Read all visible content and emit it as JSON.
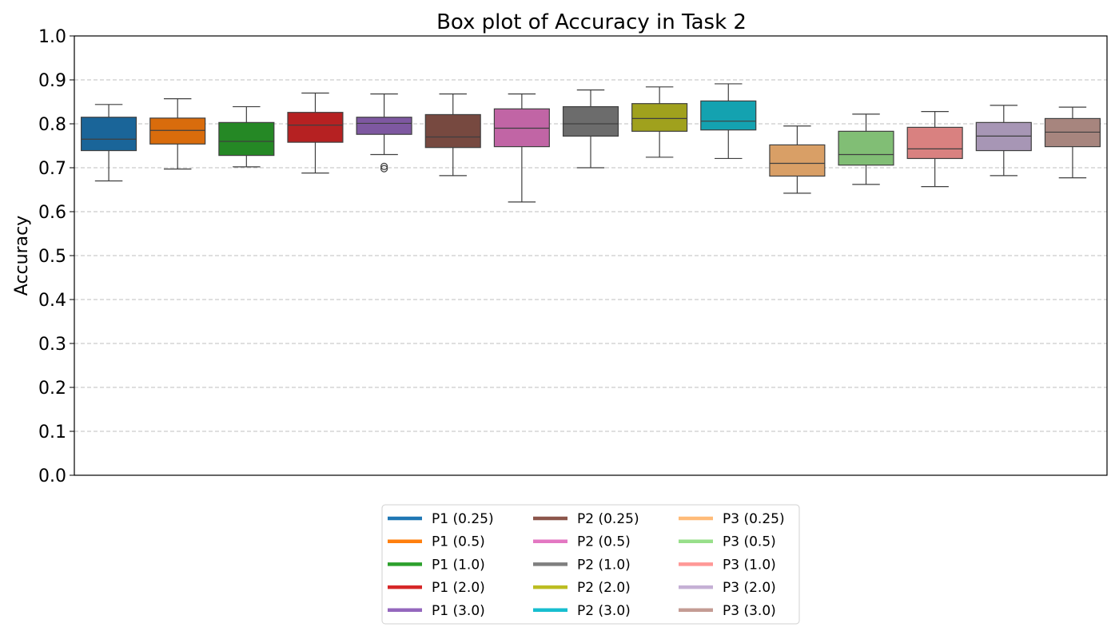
{
  "chart_data": {
    "type": "box",
    "title": "Box plot of Accuracy in Task 2",
    "xlabel": "",
    "ylabel": "Accuracy",
    "ylim": [
      0.0,
      1.0
    ],
    "yticks": [
      "0.0",
      "0.1",
      "0.2",
      "0.3",
      "0.4",
      "0.5",
      "0.6",
      "0.7",
      "0.8",
      "0.9",
      "1.0"
    ],
    "grid": "y, dashed",
    "legend_position": "bottom-center",
    "legend_columns": 3,
    "series": [
      {
        "name": "P1 (0.25)",
        "color": "#1f77b4",
        "min": 0.67,
        "q1": 0.739,
        "median": 0.765,
        "q3": 0.815,
        "max": 0.844,
        "outliers": []
      },
      {
        "name": "P1 (0.5)",
        "color": "#ff7f0e",
        "min": 0.697,
        "q1": 0.754,
        "median": 0.785,
        "q3": 0.813,
        "max": 0.857,
        "outliers": []
      },
      {
        "name": "P1 (1.0)",
        "color": "#2ca02c",
        "min": 0.702,
        "q1": 0.728,
        "median": 0.76,
        "q3": 0.803,
        "max": 0.839,
        "outliers": []
      },
      {
        "name": "P1 (2.0)",
        "color": "#d62728",
        "min": 0.688,
        "q1": 0.758,
        "median": 0.797,
        "q3": 0.826,
        "max": 0.87,
        "outliers": []
      },
      {
        "name": "P1 (3.0)",
        "color": "#9467bd",
        "min": 0.73,
        "q1": 0.776,
        "median": 0.801,
        "q3": 0.815,
        "max": 0.868,
        "outliers": [
          0.703,
          0.698
        ]
      },
      {
        "name": "P2 (0.25)",
        "color": "#8c564b",
        "min": 0.682,
        "q1": 0.746,
        "median": 0.77,
        "q3": 0.821,
        "max": 0.868,
        "outliers": []
      },
      {
        "name": "P2 (0.5)",
        "color": "#e377c2",
        "min": 0.622,
        "q1": 0.748,
        "median": 0.79,
        "q3": 0.834,
        "max": 0.868,
        "outliers": []
      },
      {
        "name": "P2 (1.0)",
        "color": "#7f7f7f",
        "min": 0.7,
        "q1": 0.772,
        "median": 0.8,
        "q3": 0.839,
        "max": 0.877,
        "outliers": []
      },
      {
        "name": "P2 (2.0)",
        "color": "#bcbd22",
        "min": 0.724,
        "q1": 0.783,
        "median": 0.812,
        "q3": 0.846,
        "max": 0.884,
        "outliers": []
      },
      {
        "name": "P2 (3.0)",
        "color": "#17becf",
        "min": 0.721,
        "q1": 0.786,
        "median": 0.806,
        "q3": 0.852,
        "max": 0.891,
        "outliers": []
      },
      {
        "name": "P3 (0.25)",
        "color": "#ffbb78",
        "min": 0.642,
        "q1": 0.681,
        "median": 0.71,
        "q3": 0.752,
        "max": 0.795,
        "outliers": []
      },
      {
        "name": "P3 (0.5)",
        "color": "#98df8a",
        "min": 0.662,
        "q1": 0.706,
        "median": 0.73,
        "q3": 0.783,
        "max": 0.822,
        "outliers": []
      },
      {
        "name": "P3 (1.0)",
        "color": "#ff9896",
        "min": 0.657,
        "q1": 0.721,
        "median": 0.743,
        "q3": 0.792,
        "max": 0.828,
        "outliers": []
      },
      {
        "name": "P3 (2.0)",
        "color": "#c5b0d5",
        "min": 0.682,
        "q1": 0.739,
        "median": 0.772,
        "q3": 0.803,
        "max": 0.842,
        "outliers": []
      },
      {
        "name": "P3 (3.0)",
        "color": "#c49c94",
        "min": 0.677,
        "q1": 0.748,
        "median": 0.781,
        "q3": 0.812,
        "max": 0.838,
        "outliers": []
      }
    ]
  }
}
